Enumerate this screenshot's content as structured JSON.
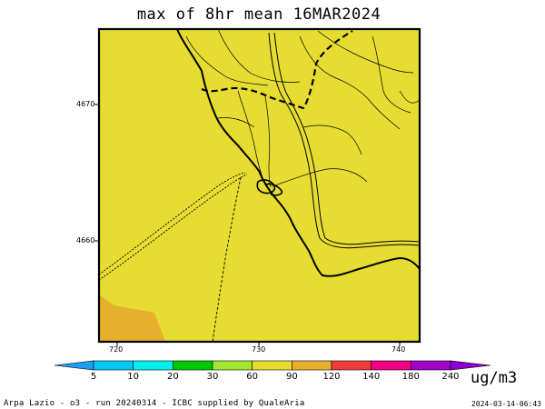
{
  "title": "max of 8hr mean 16MAR2024",
  "axes": {
    "y_ticks": [
      "4670",
      "4660"
    ],
    "x_ticks": [
      "720",
      "730",
      "740"
    ]
  },
  "colorbar": {
    "labels": [
      "5",
      "10",
      "20",
      "30",
      "60",
      "90",
      "120",
      "140",
      "180",
      "240"
    ],
    "colors": [
      "#1e9ef0",
      "#00c8f0",
      "#00f0f0",
      "#00c800",
      "#a0e632",
      "#e6dc32",
      "#e6af2d",
      "#f03c3c",
      "#f00082",
      "#a000c8",
      "#8c00d2"
    ],
    "units": "ug/m3"
  },
  "map": {
    "fill_main": "#e6dc32",
    "fill_secondary": "#e6af2d",
    "frame_color": "#000000"
  },
  "footer": {
    "left": "Arpa Lazio - o3 - run 20240314 - ICBC supplied by QualeAria",
    "right": "2024-03-14-06:43"
  }
}
